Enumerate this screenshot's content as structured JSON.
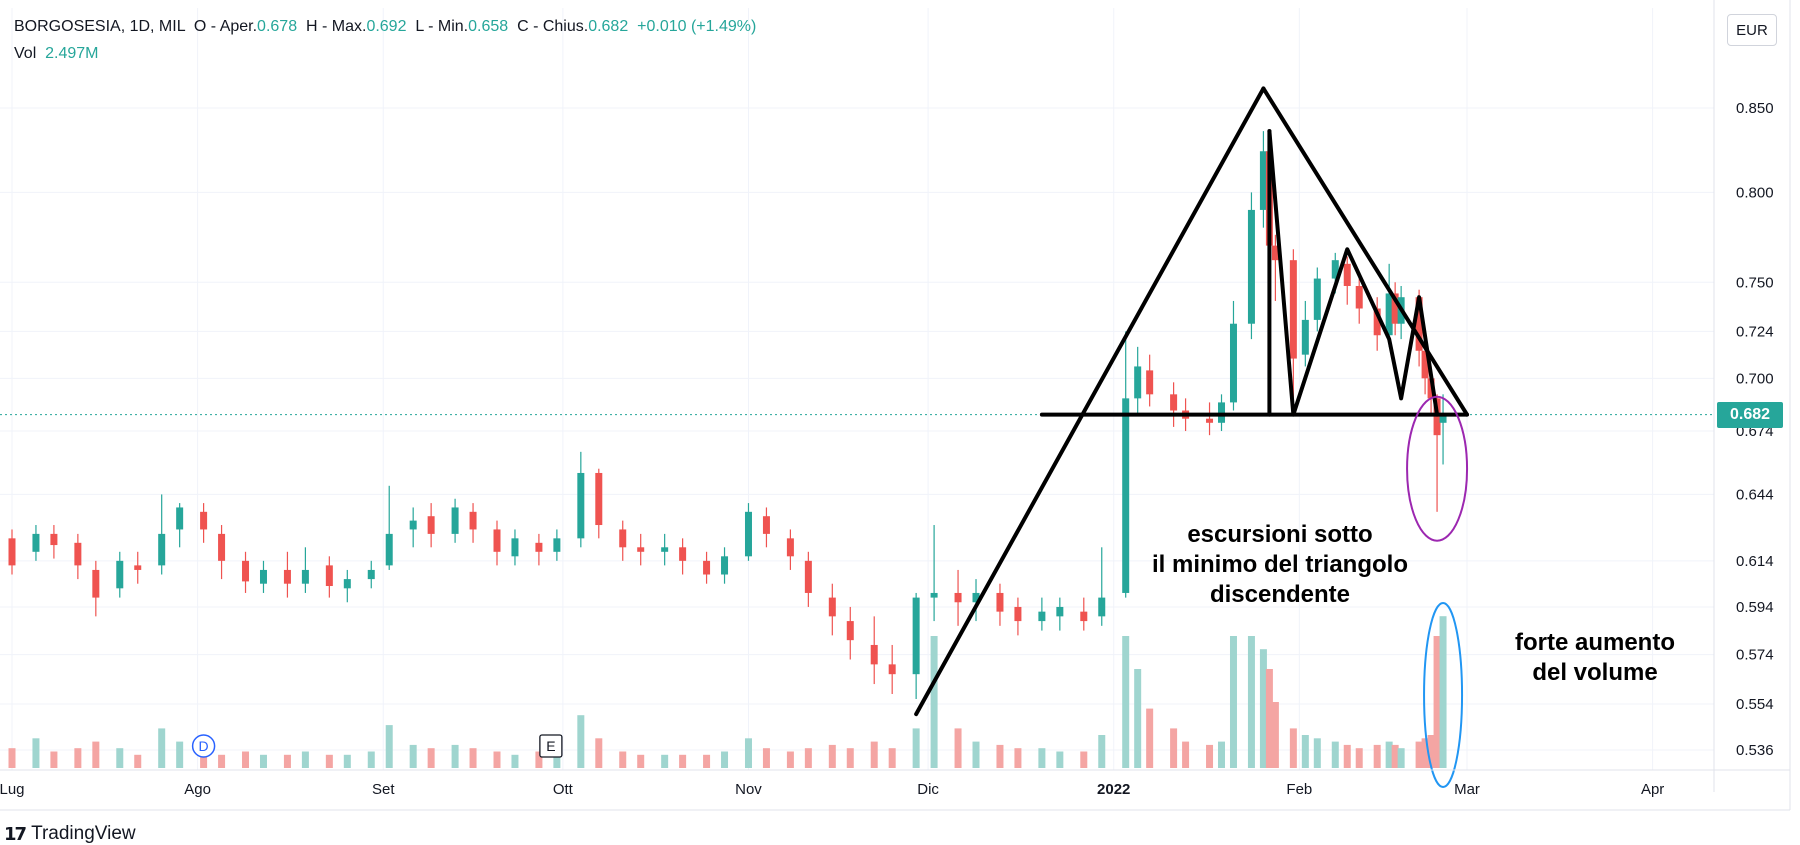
{
  "header": {
    "symbol": "BORGOSESIA, 1D, MIL",
    "open_label": "O - Aper.",
    "open_value": "0.678",
    "high_label": "H - Max.",
    "high_value": "0.692",
    "low_label": "L - Min.",
    "low_value": "0.658",
    "close_label": "C - Chius.",
    "close_value": "0.682",
    "change": "+0.010 (+1.49%)",
    "vol_label": "Vol",
    "vol_value": "2.497M"
  },
  "currency": "EUR",
  "last_price_tag": "0.682",
  "brand": "TradingView",
  "colors": {
    "up": "#26a69a",
    "down": "#ef5350",
    "up_vol": "#9fd5cf",
    "down_vol": "#f4a5a3",
    "grid": "#f0f3fa",
    "axis_text": "#131722"
  },
  "annotations": {
    "note1_line1": "escursioni sotto",
    "note1_line2": "il minimo del triangolo",
    "note1_line3": "discendente",
    "note2_line1": "forte aumento",
    "note2_line2": "del volume"
  },
  "chart_data": {
    "type": "candlestick",
    "title": "",
    "scale": "log",
    "y_ticks": [
      "0.850",
      "0.800",
      "0.750",
      "0.724",
      "0.700",
      "0.674",
      "0.644",
      "0.614",
      "0.594",
      "0.574",
      "0.554",
      "0.536"
    ],
    "x_ticks": [
      "Lug",
      "Ago",
      "Set",
      "Ott",
      "Nov",
      "Dic",
      "2022",
      "Feb",
      "Mar",
      "Apr"
    ],
    "x_range": [
      "2021-07-01",
      "2022-04-15"
    ],
    "current_price": 0.682,
    "events": [
      {
        "label": "D",
        "date": "2021-08-02"
      },
      {
        "label": "E",
        "date": "2021-09-29"
      }
    ],
    "candles": [
      [
        "2021-07-01",
        0.624,
        0.612,
        0.628,
        0.608,
        30
      ],
      [
        "2021-07-05",
        0.618,
        0.626,
        0.63,
        0.614,
        45
      ],
      [
        "2021-07-08",
        0.626,
        0.621,
        0.63,
        0.615,
        25
      ],
      [
        "2021-07-12",
        0.622,
        0.612,
        0.626,
        0.606,
        30
      ],
      [
        "2021-07-15",
        0.61,
        0.598,
        0.614,
        0.59,
        40
      ],
      [
        "2021-07-19",
        0.602,
        0.614,
        0.618,
        0.598,
        30
      ],
      [
        "2021-07-22",
        0.612,
        0.61,
        0.618,
        0.604,
        20
      ],
      [
        "2021-07-26",
        0.612,
        0.626,
        0.644,
        0.608,
        60
      ],
      [
        "2021-07-29",
        0.628,
        0.638,
        0.64,
        0.62,
        40
      ],
      [
        "2021-08-02",
        0.636,
        0.628,
        0.64,
        0.622,
        35
      ],
      [
        "2021-08-05",
        0.626,
        0.614,
        0.63,
        0.606,
        20
      ],
      [
        "2021-08-09",
        0.614,
        0.605,
        0.618,
        0.6,
        25
      ],
      [
        "2021-08-12",
        0.604,
        0.61,
        0.614,
        0.6,
        20
      ],
      [
        "2021-08-16",
        0.61,
        0.604,
        0.618,
        0.598,
        20
      ],
      [
        "2021-08-19",
        0.604,
        0.61,
        0.62,
        0.6,
        25
      ],
      [
        "2021-08-23",
        0.612,
        0.603,
        0.616,
        0.598,
        20
      ],
      [
        "2021-08-26",
        0.602,
        0.606,
        0.61,
        0.596,
        20
      ],
      [
        "2021-08-30",
        0.606,
        0.61,
        0.614,
        0.602,
        25
      ],
      [
        "2021-09-02",
        0.612,
        0.626,
        0.648,
        0.61,
        65
      ],
      [
        "2021-09-06",
        0.628,
        0.632,
        0.638,
        0.62,
        35
      ],
      [
        "2021-09-09",
        0.634,
        0.626,
        0.64,
        0.62,
        30
      ],
      [
        "2021-09-13",
        0.626,
        0.638,
        0.642,
        0.622,
        35
      ],
      [
        "2021-09-16",
        0.636,
        0.628,
        0.64,
        0.622,
        30
      ],
      [
        "2021-09-20",
        0.628,
        0.618,
        0.632,
        0.612,
        25
      ],
      [
        "2021-09-23",
        0.616,
        0.624,
        0.628,
        0.612,
        20
      ],
      [
        "2021-09-27",
        0.622,
        0.618,
        0.626,
        0.612,
        25
      ],
      [
        "2021-09-30",
        0.618,
        0.624,
        0.628,
        0.614,
        20
      ],
      [
        "2021-10-04",
        0.624,
        0.654,
        0.664,
        0.62,
        80
      ],
      [
        "2021-10-07",
        0.654,
        0.63,
        0.656,
        0.624,
        45
      ],
      [
        "2021-10-11",
        0.628,
        0.62,
        0.632,
        0.614,
        25
      ],
      [
        "2021-10-14",
        0.62,
        0.618,
        0.626,
        0.612,
        20
      ],
      [
        "2021-10-18",
        0.618,
        0.62,
        0.626,
        0.612,
        20
      ],
      [
        "2021-10-21",
        0.62,
        0.614,
        0.624,
        0.608,
        20
      ],
      [
        "2021-10-25",
        0.614,
        0.608,
        0.618,
        0.604,
        20
      ],
      [
        "2021-10-28",
        0.608,
        0.616,
        0.62,
        0.604,
        25
      ],
      [
        "2021-11-01",
        0.616,
        0.636,
        0.64,
        0.614,
        45
      ],
      [
        "2021-11-04",
        0.634,
        0.626,
        0.638,
        0.62,
        30
      ],
      [
        "2021-11-08",
        0.624,
        0.616,
        0.628,
        0.61,
        25
      ],
      [
        "2021-11-11",
        0.614,
        0.6,
        0.618,
        0.594,
        30
      ],
      [
        "2021-11-15",
        0.598,
        0.59,
        0.604,
        0.582,
        35
      ],
      [
        "2021-11-18",
        0.588,
        0.58,
        0.594,
        0.572,
        30
      ],
      [
        "2021-11-22",
        0.578,
        0.57,
        0.59,
        0.562,
        40
      ],
      [
        "2021-11-25",
        0.57,
        0.566,
        0.578,
        0.558,
        30
      ],
      [
        "2021-11-29",
        0.566,
        0.598,
        0.6,
        0.556,
        60
      ],
      [
        "2021-12-02",
        0.598,
        0.6,
        0.63,
        0.588,
        200
      ],
      [
        "2021-12-06",
        0.6,
        0.596,
        0.61,
        0.586,
        60
      ],
      [
        "2021-12-09",
        0.596,
        0.6,
        0.606,
        0.588,
        40
      ],
      [
        "2021-12-13",
        0.6,
        0.592,
        0.604,
        0.586,
        35
      ],
      [
        "2021-12-16",
        0.594,
        0.588,
        0.598,
        0.582,
        30
      ],
      [
        "2021-12-20",
        0.588,
        0.592,
        0.598,
        0.584,
        30
      ],
      [
        "2021-12-23",
        0.59,
        0.594,
        0.598,
        0.584,
        25
      ],
      [
        "2021-12-27",
        0.592,
        0.588,
        0.598,
        0.584,
        25
      ],
      [
        "2021-12-30",
        0.59,
        0.598,
        0.62,
        0.586,
        50
      ],
      [
        "2022-01-03",
        0.6,
        0.69,
        0.724,
        0.598,
        200
      ],
      [
        "2022-01-05",
        0.69,
        0.706,
        0.716,
        0.682,
        150
      ],
      [
        "2022-01-07",
        0.704,
        0.692,
        0.712,
        0.686,
        90
      ],
      [
        "2022-01-11",
        0.692,
        0.684,
        0.698,
        0.676,
        60
      ],
      [
        "2022-01-13",
        0.684,
        0.68,
        0.69,
        0.674,
        40
      ],
      [
        "2022-01-17",
        0.68,
        0.678,
        0.688,
        0.672,
        35
      ],
      [
        "2022-01-19",
        0.678,
        0.688,
        0.692,
        0.674,
        40
      ],
      [
        "2022-01-21",
        0.688,
        0.728,
        0.74,
        0.684,
        200
      ],
      [
        "2022-01-24",
        0.728,
        0.79,
        0.8,
        0.72,
        200
      ],
      [
        "2022-01-26",
        0.79,
        0.824,
        0.836,
        0.78,
        180
      ],
      [
        "2022-01-27",
        0.824,
        0.77,
        0.83,
        0.76,
        150
      ],
      [
        "2022-01-28",
        0.77,
        0.762,
        0.776,
        0.74,
        100
      ],
      [
        "2022-01-31",
        0.762,
        0.71,
        0.768,
        0.684,
        60
      ],
      [
        "2022-02-02",
        0.712,
        0.73,
        0.74,
        0.706,
        50
      ],
      [
        "2022-02-04",
        0.73,
        0.752,
        0.758,
        0.724,
        45
      ],
      [
        "2022-02-07",
        0.752,
        0.762,
        0.766,
        0.744,
        40
      ],
      [
        "2022-02-09",
        0.76,
        0.748,
        0.764,
        0.738,
        35
      ],
      [
        "2022-02-11",
        0.748,
        0.736,
        0.752,
        0.728,
        30
      ],
      [
        "2022-02-14",
        0.736,
        0.722,
        0.742,
        0.714,
        35
      ],
      [
        "2022-02-16",
        0.722,
        0.744,
        0.76,
        0.716,
        40
      ],
      [
        "2022-02-17",
        0.744,
        0.728,
        0.75,
        0.722,
        35
      ],
      [
        "2022-02-18",
        0.728,
        0.742,
        0.748,
        0.72,
        30
      ],
      [
        "2022-02-21",
        0.742,
        0.714,
        0.746,
        0.706,
        40
      ],
      [
        "2022-02-22",
        0.714,
        0.7,
        0.72,
        0.692,
        45
      ],
      [
        "2022-02-23",
        0.7,
        0.69,
        0.706,
        0.682,
        50
      ],
      [
        "2022-02-24",
        0.69,
        0.672,
        0.692,
        0.636,
        200
      ],
      [
        "2022-02-25",
        0.678,
        0.682,
        0.692,
        0.658,
        230
      ]
    ]
  }
}
